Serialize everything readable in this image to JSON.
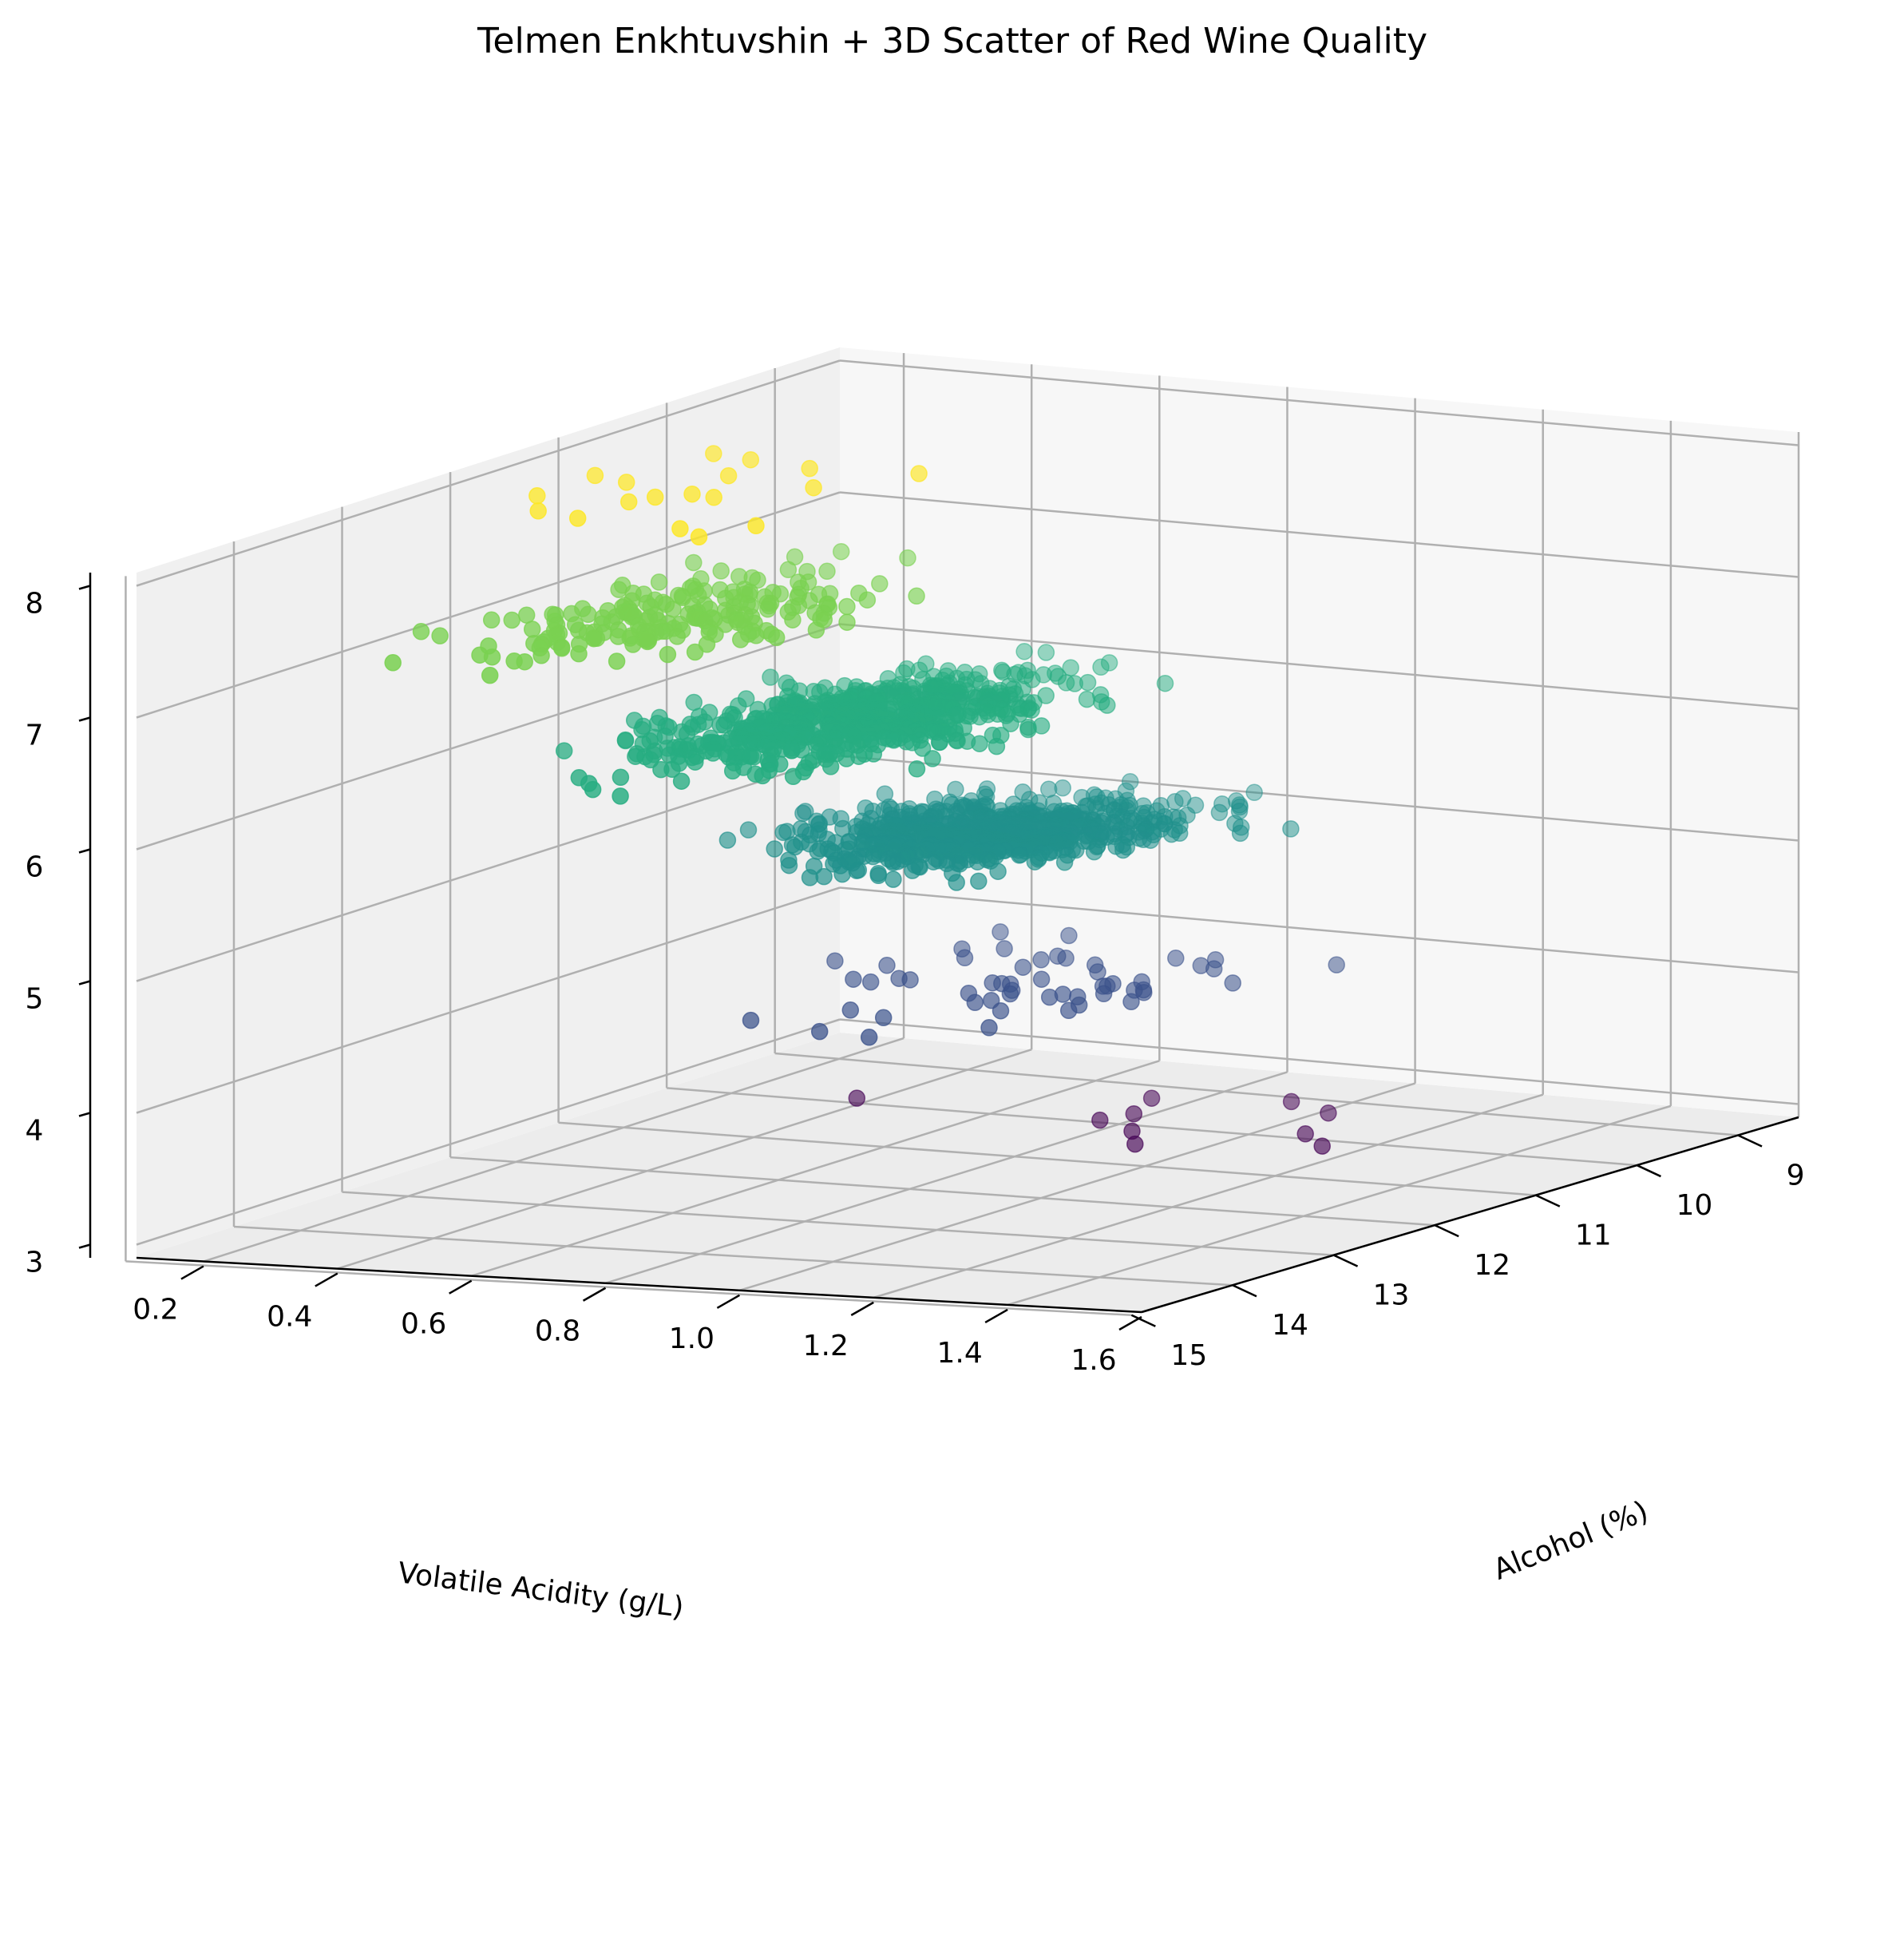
{
  "chart_data": {
    "type": "scatter",
    "title": "Telmen Enkhtuvshin + 3D Scatter of Red Wine Quality",
    "xlabel": "Volatile Acidity (g/L)",
    "ylabel": "Alcohol (%)",
    "zlabel": "",
    "x_ticks": [
      "0.2",
      "0.4",
      "0.6",
      "0.8",
      "1.0",
      "1.2",
      "1.4",
      "1.6"
    ],
    "y_ticks": [
      "9",
      "10",
      "11",
      "12",
      "13",
      "14",
      "15"
    ],
    "z_ticks": [
      "3",
      "4",
      "5",
      "6",
      "7",
      "8"
    ],
    "xlim": [
      0.1,
      1.6
    ],
    "ylim": [
      8.4,
      14.9
    ],
    "zlim": [
      2.9,
      8.1
    ],
    "colormap": "viridis",
    "color_by": "z",
    "grid": true,
    "point_groups": [
      {
        "z": 3,
        "color": "#440154",
        "count": 10
      },
      {
        "z": 4,
        "color": "#3b528b",
        "count": 53
      },
      {
        "z": 5,
        "color": "#21918c",
        "count": 681
      },
      {
        "z": 6,
        "color": "#27ad81",
        "count": 638
      },
      {
        "z": 7,
        "color": "#7ad151",
        "count": 199
      },
      {
        "z": 8,
        "color": "#fde725",
        "count": 18
      }
    ]
  }
}
